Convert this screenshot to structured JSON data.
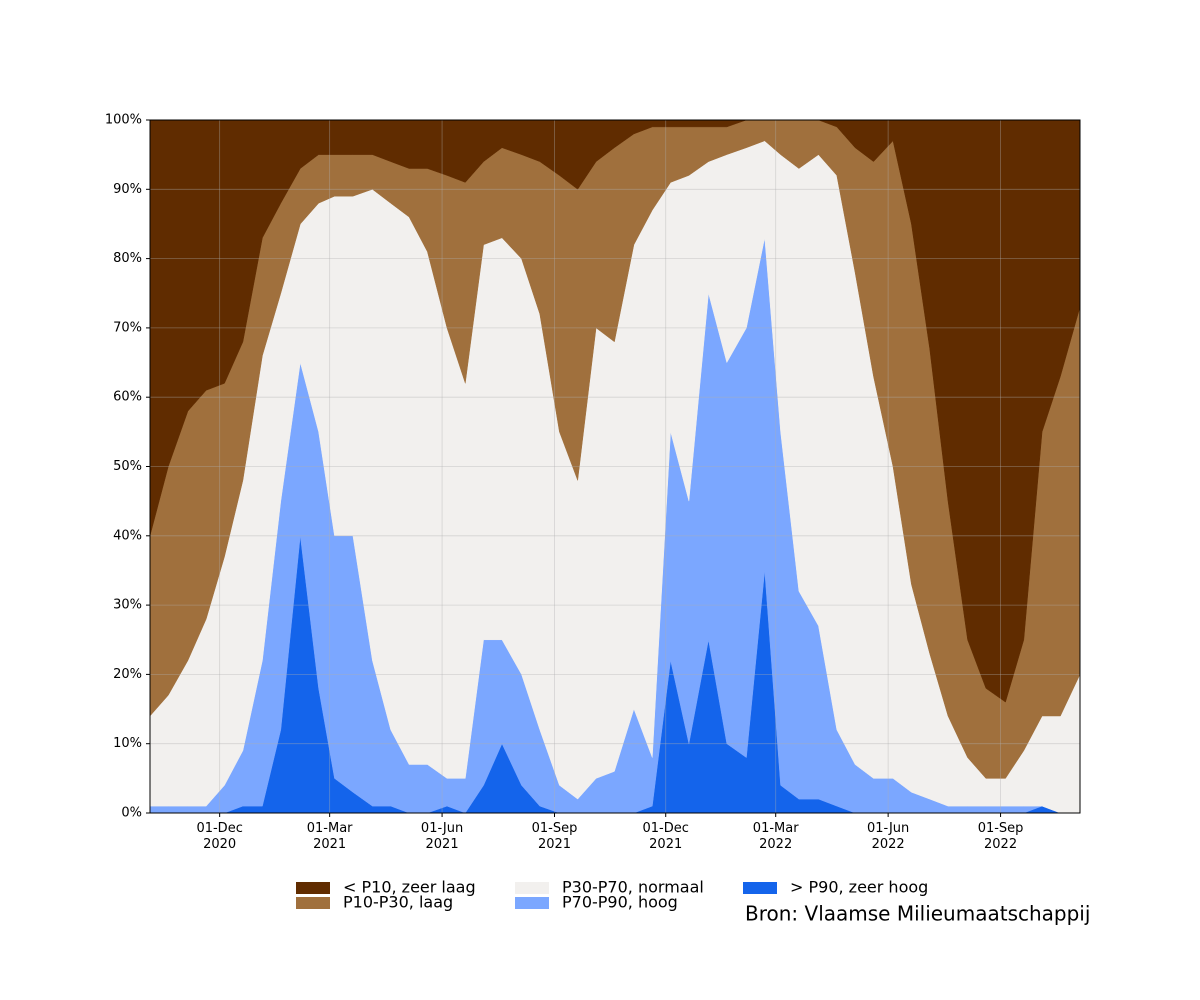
{
  "chart_data": {
    "type": "stacked-area",
    "source": "Bron: Vlaamse Milieumaatschappij",
    "x": [
      "2020-10-05",
      "2020-10-20",
      "2020-11-05",
      "2020-11-20",
      "2020-12-05",
      "2020-12-20",
      "2021-01-05",
      "2021-01-20",
      "2021-02-05",
      "2021-02-20",
      "2021-03-05",
      "2021-03-20",
      "2021-04-05",
      "2021-04-20",
      "2021-05-05",
      "2021-05-20",
      "2021-06-05",
      "2021-06-20",
      "2021-07-05",
      "2021-07-20",
      "2021-08-05",
      "2021-08-20",
      "2021-09-05",
      "2021-09-20",
      "2021-10-05",
      "2021-10-20",
      "2021-11-05",
      "2021-11-20",
      "2021-12-05",
      "2021-12-20",
      "2022-01-05",
      "2022-01-20",
      "2022-02-05",
      "2022-02-20",
      "2022-03-05",
      "2022-03-20",
      "2022-04-05",
      "2022-04-20",
      "2022-05-05",
      "2022-05-20",
      "2022-06-05",
      "2022-06-20",
      "2022-07-05",
      "2022-07-20",
      "2022-08-05",
      "2022-08-20",
      "2022-09-05",
      "2022-09-20",
      "2022-10-05",
      "2022-10-20",
      "2022-11-05"
    ],
    "series": [
      {
        "name": "< P10, zeer laag",
        "color": "#602c00",
        "values": [
          60,
          50,
          42,
          39,
          38,
          32,
          17,
          12,
          7,
          5,
          5,
          5,
          5,
          6,
          7,
          7,
          8,
          9,
          6,
          4,
          5,
          6,
          8,
          10,
          6,
          4,
          2,
          1,
          1,
          1,
          1,
          1,
          0,
          0,
          0,
          0,
          0,
          1,
          4,
          6,
          3,
          15,
          33,
          55,
          75,
          82,
          84,
          75,
          45,
          37,
          27
        ]
      },
      {
        "name": "P10-P30, laag",
        "color": "#a0703d",
        "values": [
          26,
          33,
          36,
          33,
          25,
          20,
          17,
          13,
          8,
          7,
          6,
          6,
          5,
          6,
          7,
          12,
          22,
          29,
          12,
          13,
          15,
          22,
          37,
          42,
          24,
          28,
          16,
          12,
          8,
          7,
          5,
          4,
          4,
          3,
          5,
          7,
          5,
          7,
          18,
          31,
          47,
          52,
          44,
          31,
          17,
          13,
          11,
          16,
          41,
          49,
          53
        ]
      },
      {
        "name": "P30-P70, normaal",
        "color": "#f2f0ee",
        "values": [
          13,
          16,
          21,
          27,
          33,
          39,
          44,
          30,
          20,
          33,
          49,
          49,
          68,
          76,
          79,
          74,
          65,
          57,
          57,
          58,
          60,
          60,
          51,
          46,
          65,
          62,
          67,
          79,
          36,
          47,
          19,
          30,
          26,
          14,
          40,
          61,
          68,
          80,
          71,
          58,
          45,
          30,
          21,
          13,
          7,
          4,
          4,
          8,
          13,
          14,
          20
        ]
      },
      {
        "name": "P70-P90, hoog",
        "color": "#7ba7ff",
        "values": [
          1,
          1,
          1,
          1,
          4,
          8,
          21,
          33,
          25,
          37,
          35,
          37,
          21,
          11,
          7,
          7,
          4,
          5,
          21,
          15,
          16,
          11,
          4,
          2,
          5,
          6,
          15,
          7,
          33,
          35,
          50,
          55,
          62,
          48,
          51,
          30,
          25,
          11,
          7,
          5,
          5,
          3,
          2,
          1,
          1,
          1,
          1,
          1,
          0,
          0,
          0
        ]
      },
      {
        "name": "> P90, zeer hoog",
        "color": "#1464eb",
        "values": [
          0,
          0,
          0,
          0,
          0,
          1,
          1,
          12,
          40,
          18,
          5,
          3,
          1,
          1,
          0,
          0,
          1,
          0,
          4,
          10,
          4,
          1,
          0,
          0,
          0,
          0,
          0,
          1,
          22,
          10,
          25,
          10,
          8,
          35,
          4,
          2,
          2,
          1,
          0,
          0,
          0,
          0,
          0,
          0,
          0,
          0,
          0,
          0,
          1,
          0,
          0
        ]
      }
    ],
    "xlim": [
      "2020-10-05",
      "2022-11-05"
    ],
    "xticks": [
      {
        "value": "2020-12-01",
        "label": "01-Dec\n2020"
      },
      {
        "value": "2021-03-01",
        "label": "01-Mar\n2021"
      },
      {
        "value": "2021-06-01",
        "label": "01-Jun\n2021"
      },
      {
        "value": "2021-09-01",
        "label": "01-Sep\n2021"
      },
      {
        "value": "2021-12-01",
        "label": "01-Dec\n2021"
      },
      {
        "value": "2022-03-01",
        "label": "01-Mar\n2022"
      },
      {
        "value": "2022-06-01",
        "label": "01-Jun\n2022"
      },
      {
        "value": "2022-09-01",
        "label": "01-Sep\n2022"
      }
    ],
    "ylim": [
      0,
      100
    ],
    "yticks": [
      {
        "value": 0,
        "label": "0%"
      },
      {
        "value": 10,
        "label": "10%"
      },
      {
        "value": 20,
        "label": "20%"
      },
      {
        "value": 30,
        "label": "30%"
      },
      {
        "value": 40,
        "label": "40%"
      },
      {
        "value": 50,
        "label": "50%"
      },
      {
        "value": 60,
        "label": "60%"
      },
      {
        "value": 70,
        "label": "70%"
      },
      {
        "value": 80,
        "label": "80%"
      },
      {
        "value": 90,
        "label": "90%"
      },
      {
        "value": 100,
        "label": "100%"
      }
    ],
    "grid": true
  }
}
